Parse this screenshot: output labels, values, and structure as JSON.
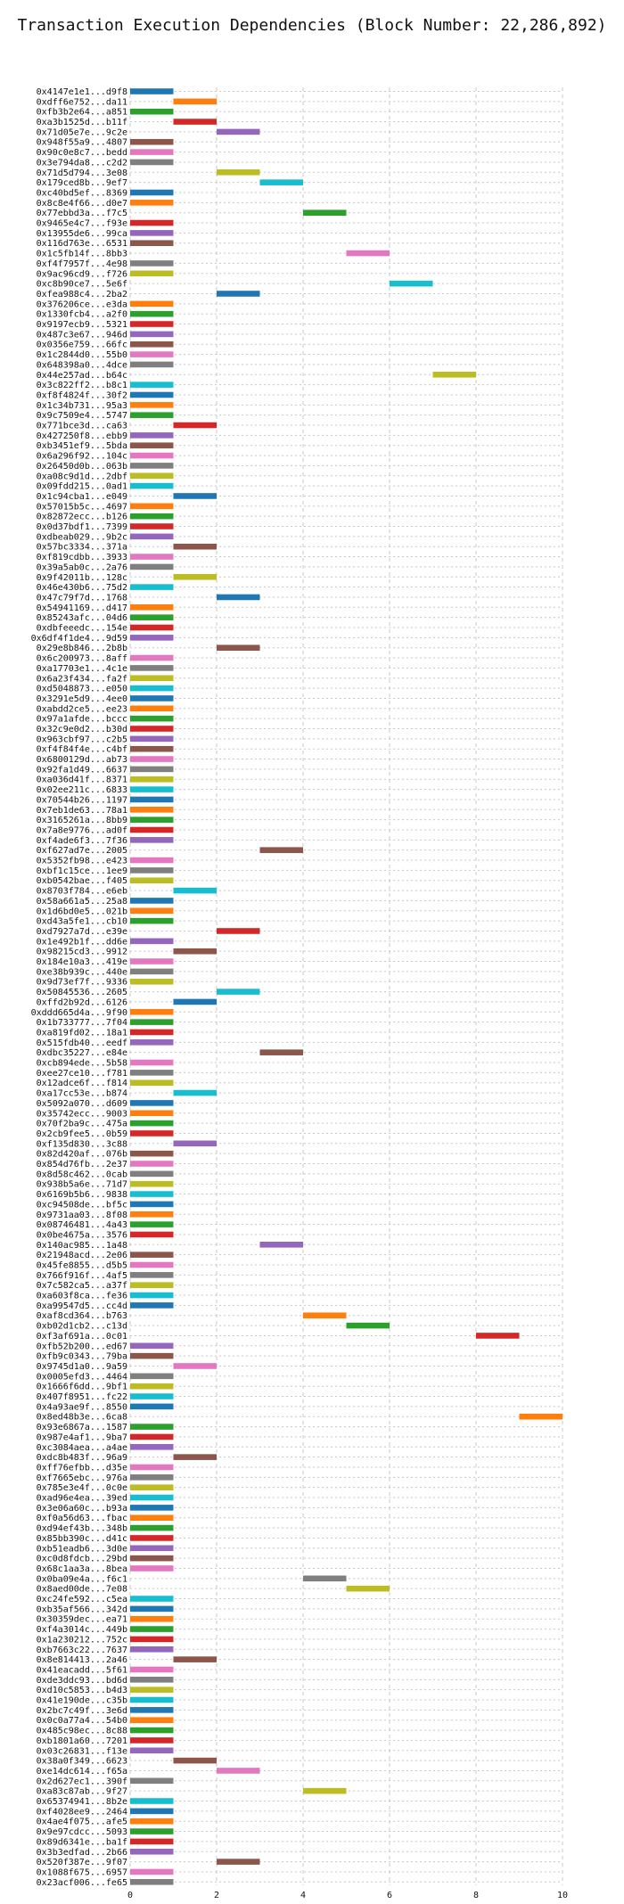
{
  "chart_data": {
    "type": "bar",
    "orientation": "horizontal",
    "title": "Transaction Execution Dependencies (Block Number: 22,286,892)",
    "xlabel": "",
    "ylabel": "",
    "xlim": [
      0,
      10
    ],
    "xticks": [
      0,
      2,
      4,
      6,
      8,
      10
    ],
    "grid": true,
    "colors": [
      "#1f77b4",
      "#ff7f0e",
      "#2ca02c",
      "#d62728",
      "#9467bd",
      "#8c564b",
      "#e377c2",
      "#7f7f7f",
      "#bcbd22",
      "#17becf"
    ],
    "transactions": [
      {
        "label": "0x4147e1e1...d9f8",
        "start": 0,
        "end": 1
      },
      {
        "label": "0xdff6e752...da11",
        "start": 1,
        "end": 2
      },
      {
        "label": "0xfb3b2e64...a851",
        "start": 0,
        "end": 1
      },
      {
        "label": "0xa3b1525d...b11f",
        "start": 1,
        "end": 2
      },
      {
        "label": "0x71d05e7e...9c2e",
        "start": 2,
        "end": 3
      },
      {
        "label": "0x948f55a9...4807",
        "start": 0,
        "end": 1
      },
      {
        "label": "0x90c0e8c7...bedd",
        "start": 0,
        "end": 1
      },
      {
        "label": "0x3e794da8...c2d2",
        "start": 0,
        "end": 1
      },
      {
        "label": "0x71d5d794...3e08",
        "start": 2,
        "end": 3
      },
      {
        "label": "0x179ced8b...9ef7",
        "start": 3,
        "end": 4
      },
      {
        "label": "0xc40bd5ef...8369",
        "start": 0,
        "end": 1
      },
      {
        "label": "0x8c8e4f66...d0e7",
        "start": 0,
        "end": 1
      },
      {
        "label": "0x77ebbd3a...f7c5",
        "start": 4,
        "end": 5
      },
      {
        "label": "0x9465e4c7...f93e",
        "start": 0,
        "end": 1
      },
      {
        "label": "0x13955de6...99ca",
        "start": 0,
        "end": 1
      },
      {
        "label": "0x116d763e...6531",
        "start": 0,
        "end": 1
      },
      {
        "label": "0x1c5fb14f...8bb3",
        "start": 5,
        "end": 6
      },
      {
        "label": "0xf4f7957f...4e98",
        "start": 0,
        "end": 1
      },
      {
        "label": "0x9ac96cd9...f726",
        "start": 0,
        "end": 1
      },
      {
        "label": "0xc8b90ce7...5e6f",
        "start": 6,
        "end": 7
      },
      {
        "label": "0xfea988c4...2ba2",
        "start": 2,
        "end": 3
      },
      {
        "label": "0x376206ce...e3da",
        "start": 0,
        "end": 1
      },
      {
        "label": "0x1330fcb4...a2f0",
        "start": 0,
        "end": 1
      },
      {
        "label": "0x9197ecb9...5321",
        "start": 0,
        "end": 1
      },
      {
        "label": "0x487c3e67...946d",
        "start": 0,
        "end": 1
      },
      {
        "label": "0x0356e759...66fc",
        "start": 0,
        "end": 1
      },
      {
        "label": "0x1c2844d0...55b0",
        "start": 0,
        "end": 1
      },
      {
        "label": "0x648398a0...4dce",
        "start": 0,
        "end": 1
      },
      {
        "label": "0x44e257ad...b64c",
        "start": 7,
        "end": 8
      },
      {
        "label": "0x3c822ff2...b8c1",
        "start": 0,
        "end": 1
      },
      {
        "label": "0xf8f4824f...30f2",
        "start": 0,
        "end": 1
      },
      {
        "label": "0x1c34b731...95a3",
        "start": 0,
        "end": 1
      },
      {
        "label": "0x9c7509e4...5747",
        "start": 0,
        "end": 1
      },
      {
        "label": "0x771bce3d...ca63",
        "start": 1,
        "end": 2
      },
      {
        "label": "0x427250f8...ebb9",
        "start": 0,
        "end": 1
      },
      {
        "label": "0xb3451ef9...5bda",
        "start": 0,
        "end": 1
      },
      {
        "label": "0x6a296f92...104c",
        "start": 0,
        "end": 1
      },
      {
        "label": "0x26450d0b...063b",
        "start": 0,
        "end": 1
      },
      {
        "label": "0xa08c9d1d...2dbf",
        "start": 0,
        "end": 1
      },
      {
        "label": "0x09fdd215...0ad1",
        "start": 0,
        "end": 1
      },
      {
        "label": "0x1c94cba1...e049",
        "start": 1,
        "end": 2
      },
      {
        "label": "0x57015b5c...4697",
        "start": 0,
        "end": 1
      },
      {
        "label": "0x82872ecc...b126",
        "start": 0,
        "end": 1
      },
      {
        "label": "0x0d37bdf1...7399",
        "start": 0,
        "end": 1
      },
      {
        "label": "0xdbeab029...9b2c",
        "start": 0,
        "end": 1
      },
      {
        "label": "0x57bc3334...371a",
        "start": 1,
        "end": 2
      },
      {
        "label": "0xf819cdbb...3933",
        "start": 0,
        "end": 1
      },
      {
        "label": "0x39a5ab0c...2a76",
        "start": 0,
        "end": 1
      },
      {
        "label": "0x9f42011b...128c",
        "start": 1,
        "end": 2
      },
      {
        "label": "0x46e430b6...75d2",
        "start": 0,
        "end": 1
      },
      {
        "label": "0x47c79f7d...1768",
        "start": 2,
        "end": 3
      },
      {
        "label": "0x54941169...d417",
        "start": 0,
        "end": 1
      },
      {
        "label": "0x85243afc...04d6",
        "start": 0,
        "end": 1
      },
      {
        "label": "0xdbfeeedc...154e",
        "start": 0,
        "end": 1
      },
      {
        "label": "0x6df4f1de4...9d59",
        "start": 0,
        "end": 1
      },
      {
        "label": "0x29e8b846...2b8b",
        "start": 2,
        "end": 3
      },
      {
        "label": "0x6c200973...8aff",
        "start": 0,
        "end": 1
      },
      {
        "label": "0xa17703e1...4c1e",
        "start": 0,
        "end": 1
      },
      {
        "label": "0x6a23f434...fa2f",
        "start": 0,
        "end": 1
      },
      {
        "label": "0xd5048873...e050",
        "start": 0,
        "end": 1
      },
      {
        "label": "0x3291e5d9...4ee0",
        "start": 0,
        "end": 1
      },
      {
        "label": "0xabdd2ce5...ee23",
        "start": 0,
        "end": 1
      },
      {
        "label": "0x97a1afde...bccc",
        "start": 0,
        "end": 1
      },
      {
        "label": "0x32c9e0d2...b30d",
        "start": 0,
        "end": 1
      },
      {
        "label": "0x963cbf97...c2b5",
        "start": 0,
        "end": 1
      },
      {
        "label": "0xf4f84f4e...c4bf",
        "start": 0,
        "end": 1
      },
      {
        "label": "0x6800129d...ab73",
        "start": 0,
        "end": 1
      },
      {
        "label": "0x92fa1d49...6637",
        "start": 0,
        "end": 1
      },
      {
        "label": "0xa036d41f...8371",
        "start": 0,
        "end": 1
      },
      {
        "label": "0x02ee211c...6833",
        "start": 0,
        "end": 1
      },
      {
        "label": "0x70544b26...1197",
        "start": 0,
        "end": 1
      },
      {
        "label": "0x7eb1de63...78a1",
        "start": 0,
        "end": 1
      },
      {
        "label": "0x3165261a...8bb9",
        "start": 0,
        "end": 1
      },
      {
        "label": "0x7a8e9776...ad0f",
        "start": 0,
        "end": 1
      },
      {
        "label": "0xf4ade6f3...7f36",
        "start": 0,
        "end": 1
      },
      {
        "label": "0xf627ad7e...2005",
        "start": 3,
        "end": 4
      },
      {
        "label": "0x5352fb98...e423",
        "start": 0,
        "end": 1
      },
      {
        "label": "0xbf1c15ce...1ee9",
        "start": 0,
        "end": 1
      },
      {
        "label": "0xb0542bae...f405",
        "start": 0,
        "end": 1
      },
      {
        "label": "0x8703f784...e6eb",
        "start": 1,
        "end": 2
      },
      {
        "label": "0x58a661a5...25a8",
        "start": 0,
        "end": 1
      },
      {
        "label": "0x1d6bd0e5...021b",
        "start": 0,
        "end": 1
      },
      {
        "label": "0xd43a5fe1...cb10",
        "start": 0,
        "end": 1
      },
      {
        "label": "0xd7927a7d...e39e",
        "start": 2,
        "end": 3
      },
      {
        "label": "0x1e492b1f...dd6e",
        "start": 0,
        "end": 1
      },
      {
        "label": "0x98215cd3...9912",
        "start": 1,
        "end": 2
      },
      {
        "label": "0x184e10a3...419e",
        "start": 0,
        "end": 1
      },
      {
        "label": "0xe38b939c...440e",
        "start": 0,
        "end": 1
      },
      {
        "label": "0x9d73ef7f...9336",
        "start": 0,
        "end": 1
      },
      {
        "label": "0x50845536...2605",
        "start": 2,
        "end": 3
      },
      {
        "label": "0xffd2b92d...6126",
        "start": 1,
        "end": 2
      },
      {
        "label": "0xddd665d4a...9f90",
        "start": 0,
        "end": 1
      },
      {
        "label": "0x1b733777...7f04",
        "start": 0,
        "end": 1
      },
      {
        "label": "0xa819fd02...18a1",
        "start": 0,
        "end": 1
      },
      {
        "label": "0x515fdb40...eedf",
        "start": 0,
        "end": 1
      },
      {
        "label": "0xdbc35227...e84e",
        "start": 3,
        "end": 4
      },
      {
        "label": "0xcb894ede...5b58",
        "start": 0,
        "end": 1
      },
      {
        "label": "0xee27ce10...f781",
        "start": 0,
        "end": 1
      },
      {
        "label": "0x12adce6f...f814",
        "start": 0,
        "end": 1
      },
      {
        "label": "0xa17cc53e...b874",
        "start": 1,
        "end": 2
      },
      {
        "label": "0x5092a070...d609",
        "start": 0,
        "end": 1
      },
      {
        "label": "0x35742ecc...9003",
        "start": 0,
        "end": 1
      },
      {
        "label": "0x70f2ba9c...475a",
        "start": 0,
        "end": 1
      },
      {
        "label": "0x2cb9fee5...0b59",
        "start": 0,
        "end": 1
      },
      {
        "label": "0xf135d830...3c88",
        "start": 1,
        "end": 2
      },
      {
        "label": "0x82d420af...076b",
        "start": 0,
        "end": 1
      },
      {
        "label": "0x854d76fb...2e37",
        "start": 0,
        "end": 1
      },
      {
        "label": "0x8d58c462...0cab",
        "start": 0,
        "end": 1
      },
      {
        "label": "0x938b5a6e...71d7",
        "start": 0,
        "end": 1
      },
      {
        "label": "0x6169b5b6...9838",
        "start": 0,
        "end": 1
      },
      {
        "label": "0xc94508de...bf5c",
        "start": 0,
        "end": 1
      },
      {
        "label": "0x9731aa03...8f08",
        "start": 0,
        "end": 1
      },
      {
        "label": "0x08746481...4a43",
        "start": 0,
        "end": 1
      },
      {
        "label": "0x0be4675a...3576",
        "start": 0,
        "end": 1
      },
      {
        "label": "0x140ac985...1a48",
        "start": 3,
        "end": 4
      },
      {
        "label": "0x21948acd...2e06",
        "start": 0,
        "end": 1
      },
      {
        "label": "0x45fe8855...d5b5",
        "start": 0,
        "end": 1
      },
      {
        "label": "0x766f916f...4af5",
        "start": 0,
        "end": 1
      },
      {
        "label": "0x7c582ca5...a37f",
        "start": 0,
        "end": 1
      },
      {
        "label": "0xa603f8ca...fe36",
        "start": 0,
        "end": 1
      },
      {
        "label": "0xa99547d5...cc4d",
        "start": 0,
        "end": 1
      },
      {
        "label": "0xaf8cd364...b763",
        "start": 4,
        "end": 5
      },
      {
        "label": "0xb02d1cb2...c13d",
        "start": 5,
        "end": 6
      },
      {
        "label": "0xf3af691a...0c01",
        "start": 8,
        "end": 9
      },
      {
        "label": "0xfb52b200...ed67",
        "start": 0,
        "end": 1
      },
      {
        "label": "0xfb9c0343...79ba",
        "start": 0,
        "end": 1
      },
      {
        "label": "0x9745d1a0...9a59",
        "start": 1,
        "end": 2
      },
      {
        "label": "0x0005efd3...4464",
        "start": 0,
        "end": 1
      },
      {
        "label": "0x1666f6dd...9bf1",
        "start": 0,
        "end": 1
      },
      {
        "label": "0x407f8951...fc22",
        "start": 0,
        "end": 1
      },
      {
        "label": "0x4a93ae9f...8550",
        "start": 0,
        "end": 1
      },
      {
        "label": "0x8ed48b3e...6ca8",
        "start": 9,
        "end": 10
      },
      {
        "label": "0x93e6867a...1587",
        "start": 0,
        "end": 1
      },
      {
        "label": "0x987e4af1...9ba7",
        "start": 0,
        "end": 1
      },
      {
        "label": "0xc3084aea...a4ae",
        "start": 0,
        "end": 1
      },
      {
        "label": "0xdc8b483f...96a9",
        "start": 1,
        "end": 2
      },
      {
        "label": "0xff76efbb...d35e",
        "start": 0,
        "end": 1
      },
      {
        "label": "0xf7665ebc...976a",
        "start": 0,
        "end": 1
      },
      {
        "label": "0x785e3e4f...0c0e",
        "start": 0,
        "end": 1
      },
      {
        "label": "0xad96e4ea...39ed",
        "start": 0,
        "end": 1
      },
      {
        "label": "0x3e06a60c...b93a",
        "start": 0,
        "end": 1
      },
      {
        "label": "0xf0a56d63...fbac",
        "start": 0,
        "end": 1
      },
      {
        "label": "0xd94ef43b...348b",
        "start": 0,
        "end": 1
      },
      {
        "label": "0x85bb390c...d41c",
        "start": 0,
        "end": 1
      },
      {
        "label": "0xb51eadb6...3d0e",
        "start": 0,
        "end": 1
      },
      {
        "label": "0xc0d8fdcb...29bd",
        "start": 0,
        "end": 1
      },
      {
        "label": "0x68c1aa3a...8bea",
        "start": 0,
        "end": 1
      },
      {
        "label": "0x0ba09e4a...f6c1",
        "start": 4,
        "end": 5
      },
      {
        "label": "0x8aed00de...7e08",
        "start": 5,
        "end": 6
      },
      {
        "label": "0xc24fe592...c5ea",
        "start": 0,
        "end": 1
      },
      {
        "label": "0xb35af566...342d",
        "start": 0,
        "end": 1
      },
      {
        "label": "0x30359dec...ea71",
        "start": 0,
        "end": 1
      },
      {
        "label": "0xf4a3014c...449b",
        "start": 0,
        "end": 1
      },
      {
        "label": "0x1a230212...752c",
        "start": 0,
        "end": 1
      },
      {
        "label": "0xb7663c22...7637",
        "start": 0,
        "end": 1
      },
      {
        "label": "0x8e814413...2a46",
        "start": 1,
        "end": 2
      },
      {
        "label": "0x41eacadd...5f61",
        "start": 0,
        "end": 1
      },
      {
        "label": "0xde3ddc93...bd6d",
        "start": 0,
        "end": 1
      },
      {
        "label": "0xd10c5853...b4d3",
        "start": 0,
        "end": 1
      },
      {
        "label": "0x41e190de...c35b",
        "start": 0,
        "end": 1
      },
      {
        "label": "0x2bc7c49f...3e6d",
        "start": 0,
        "end": 1
      },
      {
        "label": "0x0c0a77a4...54b0",
        "start": 0,
        "end": 1
      },
      {
        "label": "0x485c98ec...8c88",
        "start": 0,
        "end": 1
      },
      {
        "label": "0xb1801a60...7201",
        "start": 0,
        "end": 1
      },
      {
        "label": "0x03c26831...f13e",
        "start": 0,
        "end": 1
      },
      {
        "label": "0x38a0f349...6623",
        "start": 1,
        "end": 2
      },
      {
        "label": "0xe14dc614...f65a",
        "start": 2,
        "end": 3
      },
      {
        "label": "0x2d627ec1...390f",
        "start": 0,
        "end": 1
      },
      {
        "label": "0xa83c87ab...9f27",
        "start": 4,
        "end": 5
      },
      {
        "label": "0x65374941...8b2e",
        "start": 0,
        "end": 1
      },
      {
        "label": "0xf4028ee9...2464",
        "start": 0,
        "end": 1
      },
      {
        "label": "0x4ae4f075...afe5",
        "start": 0,
        "end": 1
      },
      {
        "label": "0x9e97cdcc...5093",
        "start": 0,
        "end": 1
      },
      {
        "label": "0x89d6341e...ba1f",
        "start": 0,
        "end": 1
      },
      {
        "label": "0x3b3edfad...2b66",
        "start": 0,
        "end": 1
      },
      {
        "label": "0x520f387e...9f07",
        "start": 2,
        "end": 3
      },
      {
        "label": "0x1088f675...6957",
        "start": 0,
        "end": 1
      },
      {
        "label": "0x23acf006...fe65",
        "start": 0,
        "end": 1
      }
    ]
  }
}
